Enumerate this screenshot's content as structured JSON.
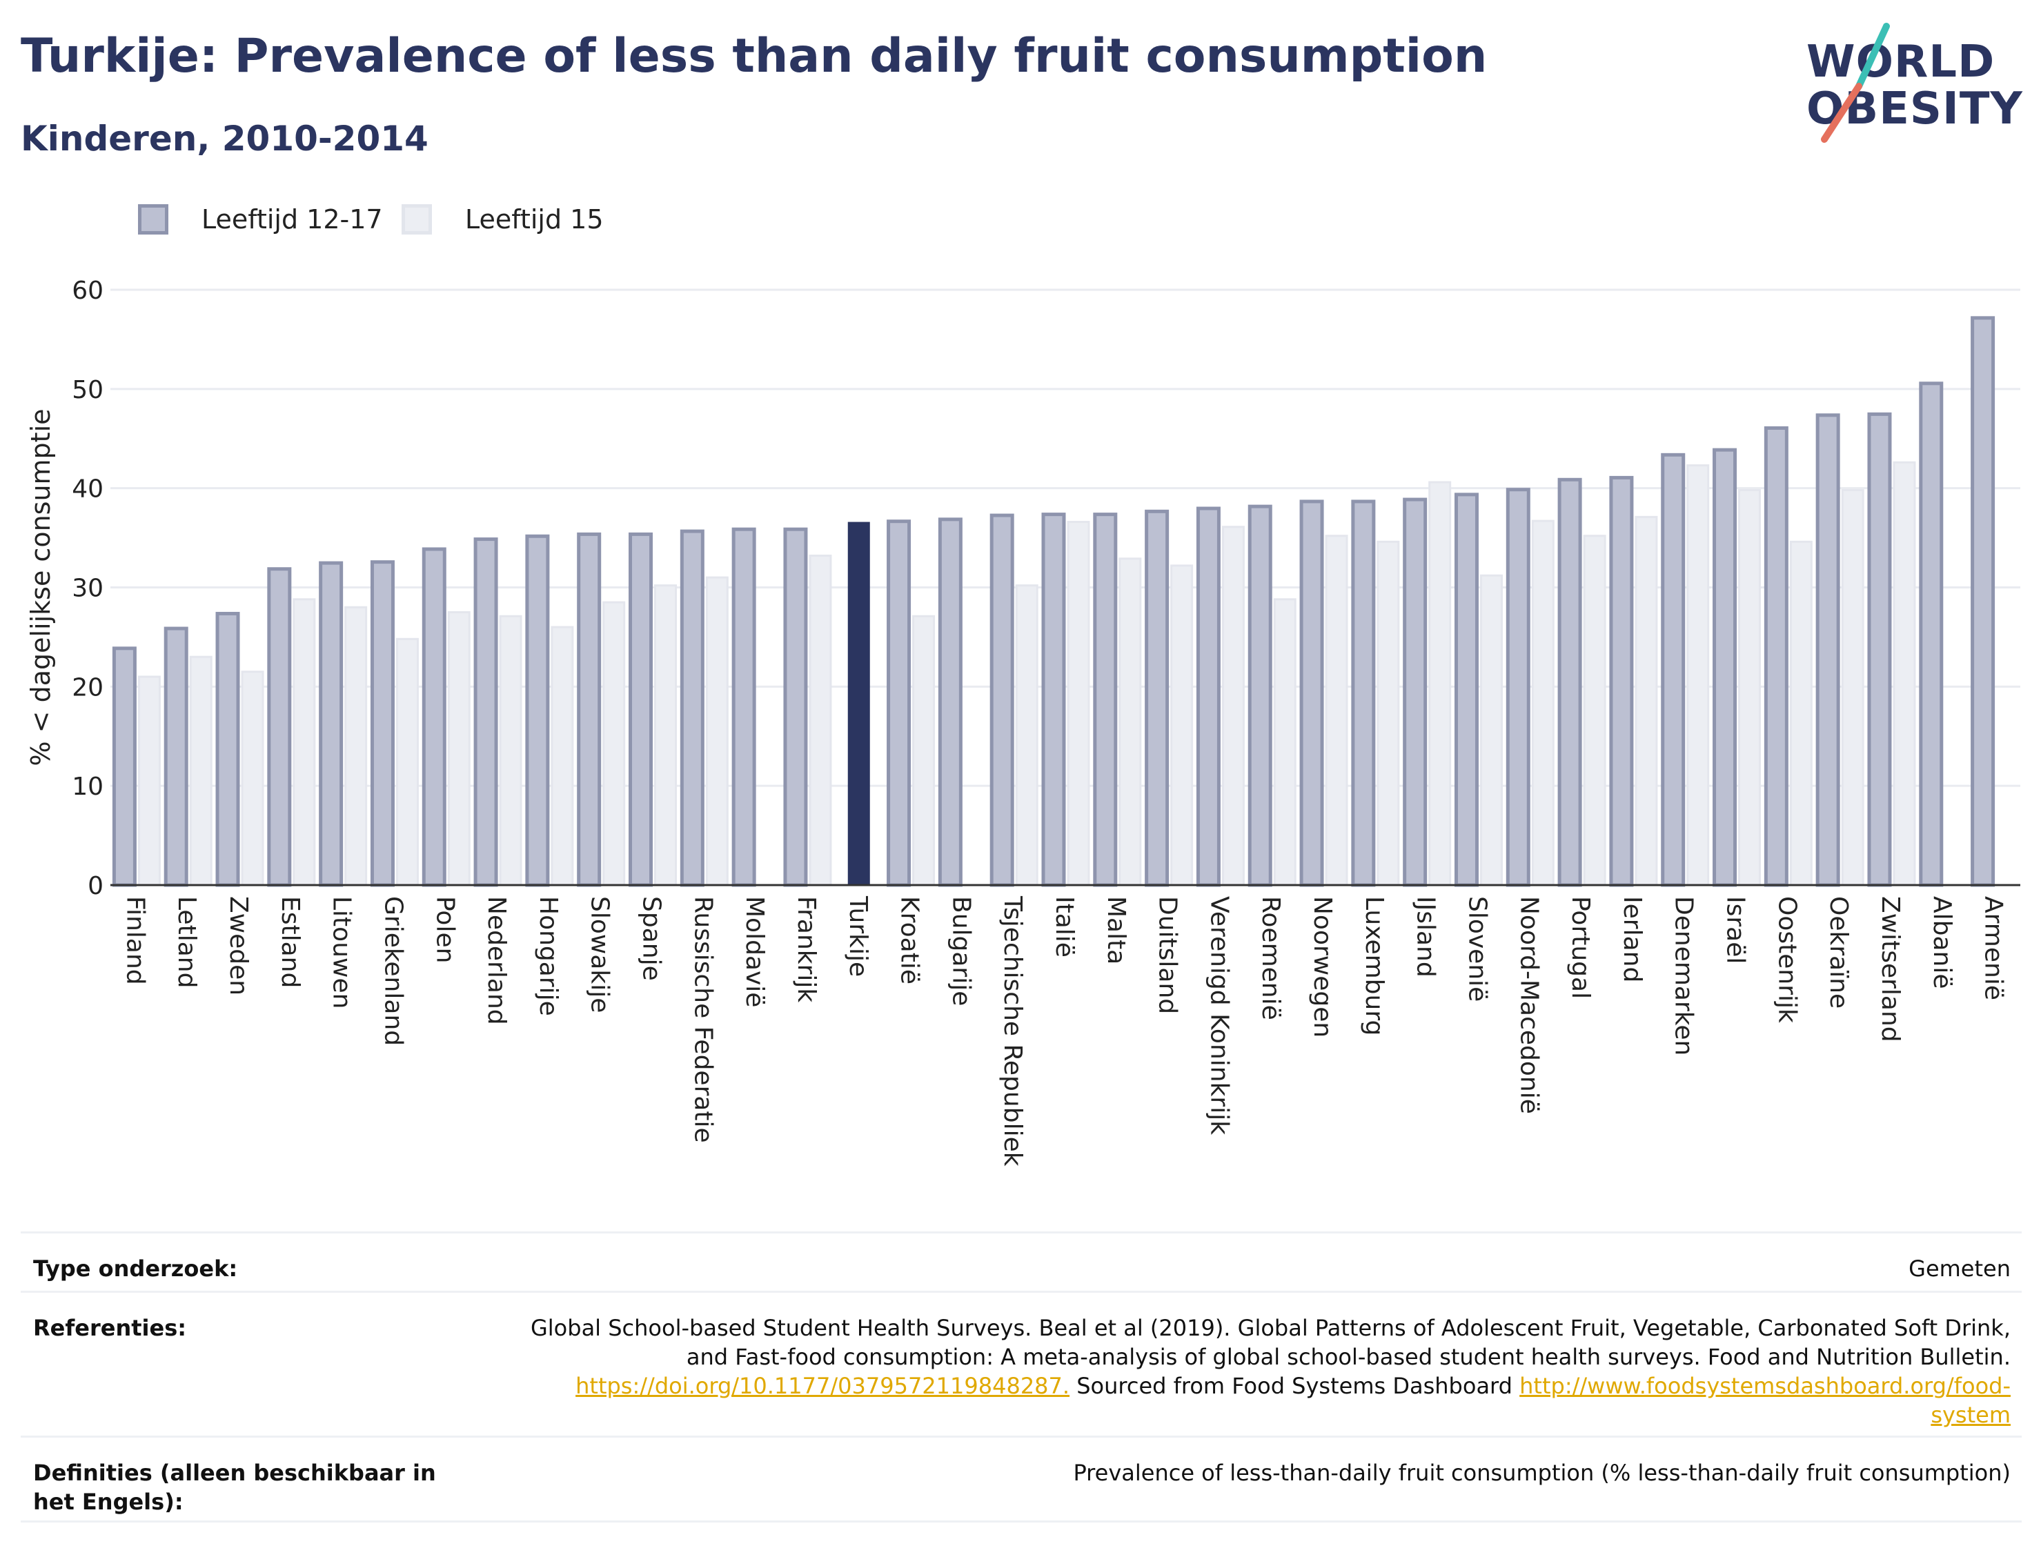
{
  "header": {
    "title": "Turkije: Prevalence of less than daily fruit consumption",
    "subtitle": "Kinderen, 2010-2014",
    "logo_line1": "WORLD",
    "logo_line2": "OBESITY"
  },
  "colors": {
    "title": "#2b3560",
    "series1_fill": "#bcc0d2",
    "series1_stroke": "#8e94ad",
    "series2_fill": "#eceef3",
    "highlight": "#2b3560",
    "logo_teal": "#3bbfb5",
    "logo_coral": "#e5705d",
    "link": "#e0a800"
  },
  "legend": [
    {
      "label": "Leeftijd 12-17"
    },
    {
      "label": "Leeftijd 15"
    }
  ],
  "chart_data": {
    "type": "bar",
    "ylabel": "% < dagelijkse consumptie",
    "ylim": [
      0,
      60
    ],
    "yticks": [
      0,
      10,
      20,
      30,
      40,
      50,
      60
    ],
    "grid": true,
    "legend_position": "top-left",
    "highlight_category": "Turkije",
    "categories": [
      "Finland",
      "Letland",
      "Zweden",
      "Estland",
      "Litouwen",
      "Griekenland",
      "Polen",
      "Nederland",
      "Hongarije",
      "Slowakije",
      "Spanje",
      "Russische Federatie",
      "Moldavië",
      "Frankrijk",
      "Turkije",
      "Kroatië",
      "Bulgarije",
      "Tsjechische Republiek",
      "Italië",
      "Malta",
      "Duitsland",
      "Verenigd Koninkrijk",
      "Roemenië",
      "Noorwegen",
      "Luxemburg",
      "IJsland",
      "Slovenië",
      "Noord-Macedonië",
      "Portugal",
      "Ierland",
      "Denemarken",
      "Israël",
      "Oostenrijk",
      "Oekraïne",
      "Zwitserland",
      "Albanië",
      "Armenië"
    ],
    "series": [
      {
        "name": "Leeftijd 12-17",
        "values": [
          24,
          26,
          27.5,
          32,
          32.6,
          32.7,
          34,
          35,
          35.3,
          35.5,
          35.5,
          35.8,
          36,
          36,
          36.6,
          36.8,
          37,
          37.4,
          37.5,
          37.5,
          37.8,
          38.1,
          38.3,
          38.8,
          38.8,
          39,
          39.5,
          40,
          41,
          41.2,
          43.5,
          44,
          46.2,
          47.5,
          47.6,
          50.7,
          57.3
        ]
      },
      {
        "name": "Leeftijd 15",
        "values": [
          21,
          23,
          21.5,
          28.8,
          28,
          24.8,
          27.5,
          27.1,
          26,
          28.5,
          30.2,
          31,
          null,
          33.2,
          null,
          27.1,
          null,
          30.2,
          36.6,
          32.9,
          32.2,
          36.1,
          28.8,
          35.2,
          34.6,
          40.6,
          31.2,
          36.7,
          35.2,
          37.1,
          42.3,
          39.8,
          34.6,
          39.8,
          42.6,
          null,
          null
        ]
      }
    ]
  },
  "info": [
    {
      "label": "Type onderzoek:",
      "value": "Gemeten"
    },
    {
      "label": "Referenties:",
      "value": "Global School-based Student Health Surveys. Beal et al (2019). Global Patterns of Adolescent Fruit, Vegetable, Carbonated Soft Drink, and Fast-food consumption: A meta-analysis of global school-based student health surveys. Food and Nutrition Bulletin.",
      "link1": "https://doi.org/10.1177/0379572119848287.",
      "middle": "Sourced from Food Systems Dashboard",
      "link2": "http://www.foodsystemsdashboard.org/food-system"
    },
    {
      "label": "Definities (alleen beschikbaar in het Engels):",
      "value": "Prevalence of less-than-daily fruit consumption (% less-than-daily fruit consumption)"
    }
  ]
}
